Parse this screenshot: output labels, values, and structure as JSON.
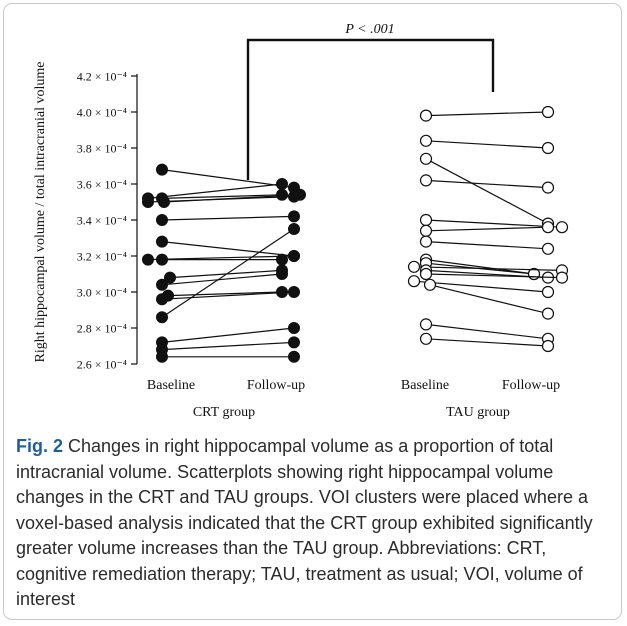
{
  "caption": {
    "label": "Fig. 2",
    "text": " Changes in right hippocampal volume as a proportion of total intracranial volume. Scatterplots showing right hippocampal volume changes in the CRT and TAU groups. VOI clusters were placed where a voxel-based analysis indicated that the CRT group exhibited significantly greater volume increases than the TAU group. Abbreviations: CRT, cognitive remediation therapy; TAU, treatment as usual; VOI, volume of interest"
  },
  "chart_data": {
    "type": "scatter",
    "title": "",
    "ylabel": "Right hippocampal volume / total intracranial volume",
    "ylim": [
      2.6,
      4.2
    ],
    "y_scale_note": "× 10⁻⁴",
    "yticks": [
      {
        "value": 2.6,
        "label": "2.6 × 10⁻⁴"
      },
      {
        "value": 2.8,
        "label": "2.8 × 10⁻⁴"
      },
      {
        "value": 3.0,
        "label": "3.0 × 10⁻⁴"
      },
      {
        "value": 3.2,
        "label": "3.2 × 10⁻⁴"
      },
      {
        "value": 3.4,
        "label": "3.4 × 10⁻⁴"
      },
      {
        "value": 3.6,
        "label": "3.6 × 10⁻⁴"
      },
      {
        "value": 3.8,
        "label": "3.8 × 10⁻⁴"
      },
      {
        "value": 4.0,
        "label": "4.0 × 10⁻⁴"
      },
      {
        "value": 4.2,
        "label": "4.2 × 10⁻⁴"
      }
    ],
    "significance": "P < .001",
    "groups": [
      {
        "name": "CRT group",
        "marker": "filled",
        "conditions": [
          "Baseline",
          "Follow-up"
        ],
        "pairs": [
          [
            3.68,
            3.58
          ],
          [
            3.52,
            3.6
          ],
          [
            3.52,
            3.54
          ],
          [
            3.5,
            3.53
          ],
          [
            3.5,
            3.54
          ],
          [
            3.4,
            3.42
          ],
          [
            3.28,
            3.2
          ],
          [
            3.18,
            3.2
          ],
          [
            3.18,
            3.18
          ],
          [
            3.08,
            3.12
          ],
          [
            3.04,
            3.1
          ],
          [
            2.98,
            3.0
          ],
          [
            2.96,
            3.0
          ],
          [
            2.86,
            3.35
          ],
          [
            2.72,
            2.8
          ],
          [
            2.68,
            2.72
          ],
          [
            2.64,
            2.64
          ]
        ]
      },
      {
        "name": "TAU group",
        "marker": "open",
        "conditions": [
          "Baseline",
          "Follow-up"
        ],
        "pairs": [
          [
            3.98,
            4.0
          ],
          [
            3.84,
            3.8
          ],
          [
            3.74,
            3.38
          ],
          [
            3.62,
            3.58
          ],
          [
            3.4,
            3.36
          ],
          [
            3.34,
            3.36
          ],
          [
            3.28,
            3.24
          ],
          [
            3.18,
            3.1
          ],
          [
            3.16,
            3.1
          ],
          [
            3.14,
            3.12
          ],
          [
            3.12,
            3.08
          ],
          [
            3.1,
            3.08
          ],
          [
            3.06,
            3.0
          ],
          [
            3.04,
            2.88
          ],
          [
            2.82,
            2.74
          ],
          [
            2.74,
            2.7
          ]
        ]
      }
    ]
  }
}
